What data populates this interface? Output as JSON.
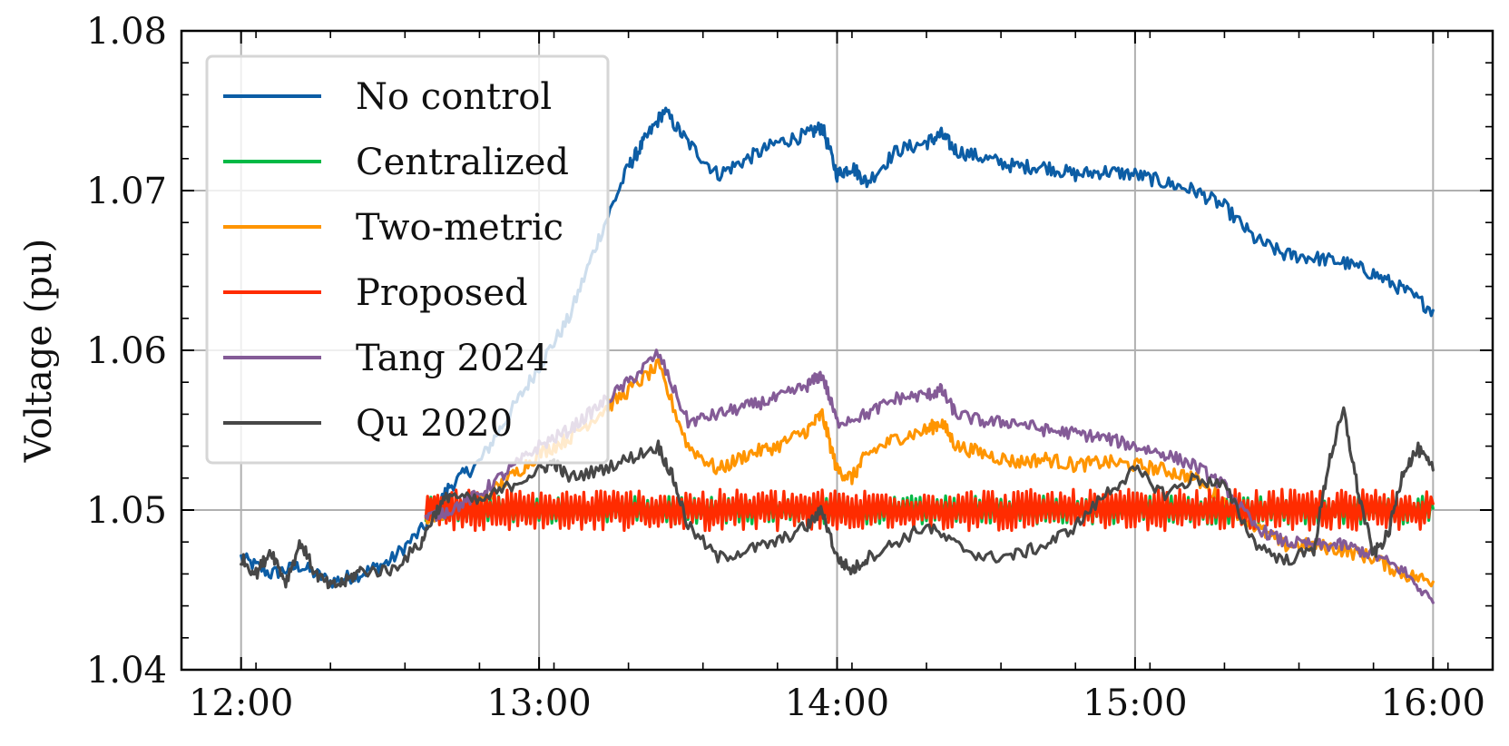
{
  "chart_data": {
    "type": "line",
    "title": "",
    "xlabel": "",
    "ylabel": "Voltage (pu)",
    "x_unit": "hours",
    "xlim": [
      11.8,
      16.2
    ],
    "ylim": [
      1.04,
      1.08
    ],
    "x_ticks": [
      {
        "value": 12,
        "label": "12:00"
      },
      {
        "value": 13,
        "label": "13:00"
      },
      {
        "value": 14,
        "label": "14:00"
      },
      {
        "value": 15,
        "label": "15:00"
      },
      {
        "value": 16,
        "label": "16:00"
      }
    ],
    "y_ticks": [
      {
        "value": 1.04,
        "label": "1.04"
      },
      {
        "value": 1.05,
        "label": "1.05"
      },
      {
        "value": 1.06,
        "label": "1.06"
      },
      {
        "value": 1.07,
        "label": "1.07"
      },
      {
        "value": 1.08,
        "label": "1.08"
      }
    ],
    "grid": true,
    "legend_position": "top-left",
    "series": [
      {
        "name": "No control",
        "color": "#0C5DA5",
        "x": [
          12.0,
          12.1,
          12.2,
          12.3,
          12.4,
          12.5,
          12.62,
          12.7,
          12.8,
          12.9,
          13.0,
          13.1,
          13.2,
          13.3,
          13.35,
          13.42,
          13.5,
          13.6,
          13.7,
          13.8,
          13.9,
          13.95,
          14.0,
          14.05,
          14.1,
          14.2,
          14.3,
          14.35,
          14.4,
          14.5,
          14.6,
          14.7,
          14.8,
          14.9,
          15.0,
          15.1,
          15.2,
          15.3,
          15.4,
          15.5,
          15.6,
          15.7,
          15.8,
          15.9,
          16.0
        ],
        "y": [
          1.047,
          1.046,
          1.0465,
          1.0455,
          1.046,
          1.0468,
          1.049,
          1.0515,
          1.053,
          1.056,
          1.059,
          1.062,
          1.067,
          1.0715,
          1.073,
          1.075,
          1.073,
          1.071,
          1.072,
          1.073,
          1.0735,
          1.074,
          1.071,
          1.0715,
          1.0705,
          1.0725,
          1.073,
          1.0735,
          1.0725,
          1.072,
          1.0715,
          1.0715,
          1.071,
          1.0712,
          1.071,
          1.0705,
          1.07,
          1.069,
          1.067,
          1.066,
          1.0658,
          1.0655,
          1.0648,
          1.0638,
          1.0625
        ]
      },
      {
        "name": "Centralized",
        "color": "#00B945",
        "x": [
          12.62,
          12.7,
          12.8,
          12.9,
          13.0,
          13.1,
          13.2,
          13.3,
          13.4,
          13.5,
          13.6,
          13.7,
          13.8,
          13.9,
          14.0,
          14.1,
          14.2,
          14.3,
          14.4,
          14.5,
          14.6,
          14.7,
          14.8,
          14.9,
          15.0,
          15.1,
          15.2,
          15.3,
          15.4,
          15.5,
          15.6,
          15.7,
          15.8,
          15.9,
          16.0
        ],
        "y": [
          1.0495,
          1.05,
          1.0502,
          1.0498,
          1.05,
          1.0501,
          1.0499,
          1.05,
          1.0502,
          1.0498,
          1.05,
          1.0501,
          1.0499,
          1.05,
          1.0501,
          1.0499,
          1.05,
          1.0501,
          1.05,
          1.0499,
          1.05,
          1.0501,
          1.05,
          1.05,
          1.05,
          1.05,
          1.0501,
          1.05,
          1.05,
          1.05,
          1.05,
          1.05,
          1.05,
          1.05,
          1.0501
        ]
      },
      {
        "name": "Two-metric",
        "color": "#FF9500",
        "x": [
          12.62,
          12.7,
          12.8,
          12.9,
          13.0,
          13.1,
          13.2,
          13.3,
          13.4,
          13.5,
          13.6,
          13.7,
          13.8,
          13.9,
          13.95,
          14.0,
          14.05,
          14.1,
          14.2,
          14.3,
          14.35,
          14.4,
          14.5,
          14.6,
          14.7,
          14.8,
          14.9,
          15.0,
          15.1,
          15.2,
          15.3,
          15.4,
          15.5,
          15.6,
          15.7,
          15.8,
          15.9,
          16.0
        ],
        "y": [
          1.0495,
          1.05,
          1.0505,
          1.052,
          1.0535,
          1.0545,
          1.056,
          1.0575,
          1.059,
          1.054,
          1.0525,
          1.0535,
          1.054,
          1.055,
          1.056,
          1.0525,
          1.052,
          1.0535,
          1.0545,
          1.055,
          1.0555,
          1.054,
          1.0535,
          1.053,
          1.0532,
          1.0528,
          1.053,
          1.0528,
          1.0525,
          1.052,
          1.0505,
          1.049,
          1.0478,
          1.0478,
          1.0475,
          1.047,
          1.046,
          1.0455
        ]
      },
      {
        "name": "Proposed",
        "color": "#FF2C00",
        "x": [
          12.62,
          12.7,
          12.8,
          12.9,
          13.0,
          13.1,
          13.2,
          13.3,
          13.4,
          13.5,
          13.6,
          13.7,
          13.8,
          13.9,
          14.0,
          14.1,
          14.2,
          14.3,
          14.4,
          14.5,
          14.6,
          14.7,
          14.8,
          14.9,
          15.0,
          15.1,
          15.2,
          15.3,
          15.4,
          15.5,
          15.6,
          15.7,
          15.8,
          15.9,
          16.0
        ],
        "y": [
          1.0495,
          1.0505,
          1.0495,
          1.0505,
          1.0495,
          1.0505,
          1.0495,
          1.0505,
          1.0495,
          1.0505,
          1.0495,
          1.0505,
          1.0495,
          1.0505,
          1.0495,
          1.0505,
          1.0495,
          1.0505,
          1.0495,
          1.0505,
          1.0495,
          1.0505,
          1.0495,
          1.0505,
          1.0495,
          1.0505,
          1.0495,
          1.0505,
          1.0495,
          1.0505,
          1.0495,
          1.0503,
          1.0497,
          1.0502,
          1.0504
        ]
      },
      {
        "name": "Tang 2024",
        "color": "#845B97",
        "x": [
          12.62,
          12.7,
          12.8,
          12.9,
          13.0,
          13.1,
          13.2,
          13.3,
          13.4,
          13.5,
          13.6,
          13.7,
          13.8,
          13.9,
          13.95,
          14.0,
          14.1,
          14.2,
          14.3,
          14.35,
          14.4,
          14.5,
          14.6,
          14.7,
          14.8,
          14.9,
          15.0,
          15.1,
          15.2,
          15.3,
          15.4,
          15.5,
          15.6,
          15.7,
          15.8,
          15.9,
          16.0
        ],
        "y": [
          1.0495,
          1.05,
          1.051,
          1.0525,
          1.054,
          1.055,
          1.0565,
          1.058,
          1.0598,
          1.0555,
          1.056,
          1.0565,
          1.057,
          1.0578,
          1.0585,
          1.0555,
          1.056,
          1.057,
          1.0572,
          1.0575,
          1.056,
          1.0555,
          1.0555,
          1.055,
          1.0548,
          1.0545,
          1.054,
          1.0535,
          1.0528,
          1.0515,
          1.049,
          1.048,
          1.0478,
          1.0478,
          1.0472,
          1.0462,
          1.0442
        ]
      },
      {
        "name": "Qu 2020",
        "color": "#474747",
        "x": [
          12.0,
          12.05,
          12.1,
          12.15,
          12.2,
          12.25,
          12.3,
          12.35,
          12.4,
          12.5,
          12.6,
          12.65,
          12.7,
          12.8,
          12.9,
          13.0,
          13.05,
          13.1,
          13.2,
          13.3,
          13.4,
          13.45,
          13.5,
          13.6,
          13.7,
          13.8,
          13.9,
          13.95,
          14.0,
          14.05,
          14.1,
          14.2,
          14.3,
          14.4,
          14.5,
          14.6,
          14.7,
          14.8,
          14.9,
          15.0,
          15.1,
          15.2,
          15.3,
          15.4,
          15.5,
          15.6,
          15.65,
          15.7,
          15.75,
          15.8,
          15.85,
          15.9,
          15.95,
          16.0
        ],
        "y": [
          1.047,
          1.046,
          1.0475,
          1.0455,
          1.048,
          1.046,
          1.0452,
          1.0455,
          1.0462,
          1.0462,
          1.0478,
          1.0498,
          1.051,
          1.0505,
          1.0515,
          1.0525,
          1.053,
          1.052,
          1.0525,
          1.0532,
          1.054,
          1.052,
          1.049,
          1.047,
          1.0475,
          1.048,
          1.049,
          1.05,
          1.047,
          1.0462,
          1.047,
          1.048,
          1.049,
          1.0478,
          1.047,
          1.0472,
          1.0478,
          1.049,
          1.051,
          1.0525,
          1.051,
          1.052,
          1.0515,
          1.048,
          1.0468,
          1.0475,
          1.053,
          1.0562,
          1.051,
          1.0472,
          1.0485,
          1.0525,
          1.0538,
          1.0525
        ]
      }
    ]
  }
}
